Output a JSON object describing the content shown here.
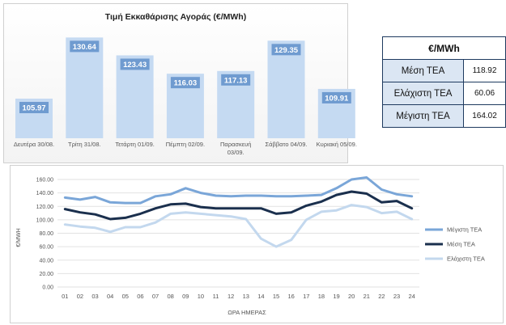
{
  "chart_data": [
    {
      "type": "bar",
      "title": "Τιμή Εκκαθάρισης Αγοράς (€/MWh)",
      "categories": [
        "Δευτέρα 30/08.",
        "Τρίτη 31/08.",
        "Τετάρτη 01/09.",
        "Πέμπτη 02/09.",
        "Παρασκευή 03/09.",
        "Σάββατο 04/09.",
        "Κυριακή 05/09."
      ],
      "values": [
        105.97,
        130.64,
        123.43,
        116.03,
        117.13,
        129.35,
        109.91
      ],
      "value_labels": [
        "105.97",
        "130.64",
        "123.43",
        "116.03",
        "117.13",
        "129.35",
        "109.91"
      ],
      "ylim": [
        90,
        135
      ],
      "bar_color": "#c5daf2",
      "label_box_color": "#6f9bd0"
    },
    {
      "type": "table",
      "header": "€/MWh",
      "rows": [
        {
          "label": "Μέση ΤΕΑ",
          "value": "118.92"
        },
        {
          "label": "Ελάχιστη ΤΕΑ",
          "value": "60.06"
        },
        {
          "label": "Μέγιστη ΤΕΑ",
          "value": "164.02"
        }
      ]
    },
    {
      "type": "line",
      "x": [
        "01",
        "02",
        "03",
        "04",
        "05",
        "06",
        "07",
        "08",
        "09",
        "10",
        "11",
        "12",
        "13",
        "14",
        "15",
        "16",
        "17",
        "18",
        "19",
        "20",
        "21",
        "22",
        "23",
        "24"
      ],
      "xlabel": "ΩΡΑ ΗΜΕΡΑΣ",
      "ylabel": "€/MWH",
      "ylim": [
        0,
        160
      ],
      "yticks": [
        "0.00",
        "20.00",
        "40.00",
        "60.00",
        "80.00",
        "100.00",
        "120.00",
        "140.00",
        "160.00"
      ],
      "grid": true,
      "legend_position": "right",
      "series": [
        {
          "name": "Μέγιστη ΤΕΑ",
          "color": "#7aa6d8",
          "values": [
            133,
            130,
            134,
            126,
            125,
            125,
            135,
            138,
            147,
            140,
            136,
            135,
            136,
            136,
            135,
            135,
            136,
            137,
            147,
            160,
            163,
            145,
            138,
            135
          ]
        },
        {
          "name": "Μέση ΤΕΑ",
          "color": "#1a2f4d",
          "values": [
            116,
            111,
            108,
            101,
            103,
            109,
            117,
            123,
            124,
            119,
            117,
            117,
            117,
            117,
            109,
            111,
            121,
            127,
            137,
            142,
            139,
            126,
            128,
            117
          ]
        },
        {
          "name": "Ελάχιστη ΤΕΑ",
          "color": "#c3d8ee",
          "values": [
            93,
            90,
            88,
            82,
            89,
            89,
            96,
            109,
            111,
            109,
            107,
            105,
            101,
            72,
            60,
            70,
            100,
            112,
            114,
            122,
            119,
            110,
            112,
            101
          ]
        }
      ]
    }
  ]
}
